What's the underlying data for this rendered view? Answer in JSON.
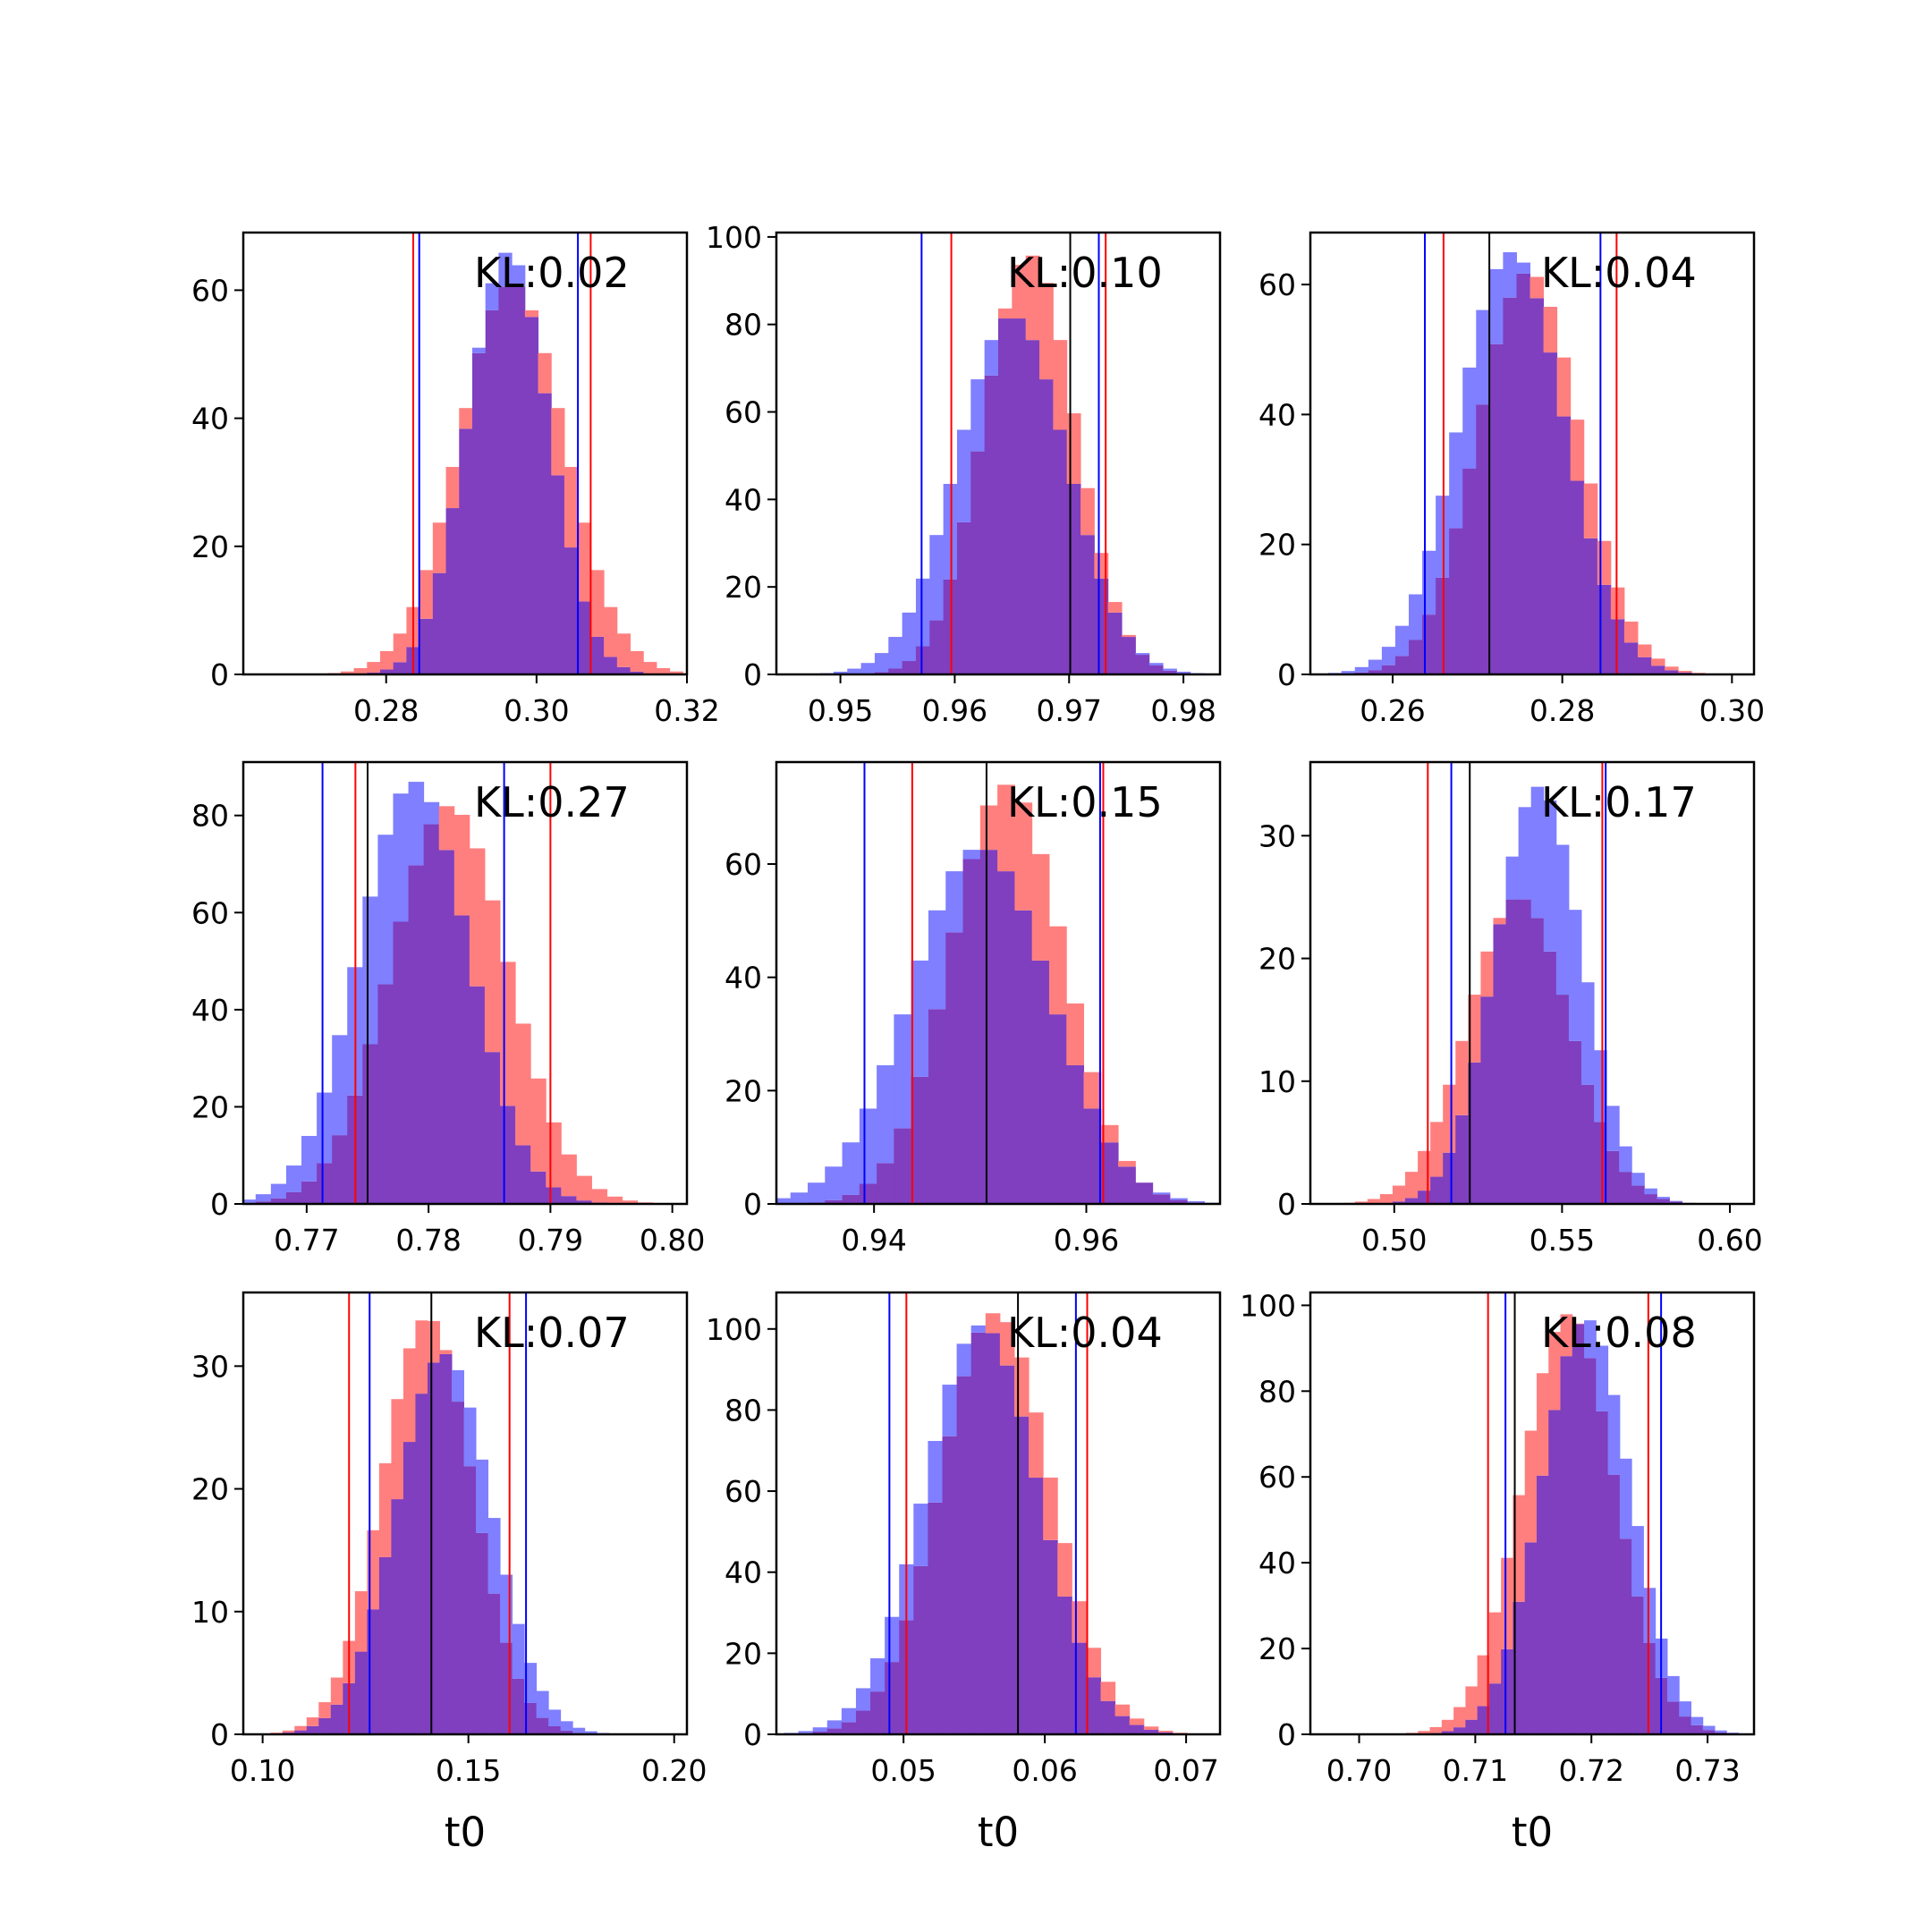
{
  "figure": {
    "colors": {
      "red_series": "#ff0000",
      "blue_series": "#0000ff",
      "red_fill": "#ff7f7f",
      "blue_fill": "#7f7fff",
      "overlap_fill": "#7f3fbf",
      "truth_line": "#000000",
      "axes": "#000000"
    }
  },
  "chart_data": [
    {
      "type": "histogram",
      "kl": "KL:0.02",
      "xlabel": "",
      "xlim": [
        0.261,
        0.32
      ],
      "ylim": [
        0,
        69
      ],
      "xticks": [
        0.28,
        0.3,
        0.32
      ],
      "xtick_labels": [
        "0.28",
        "0.30",
        "0.32"
      ],
      "yticks": [
        0,
        20,
        40,
        60
      ],
      "ytick_labels": [
        "0",
        "20",
        "40",
        "60"
      ],
      "red": {
        "mean": 0.2967,
        "std": 0.007,
        "peak": 61
      },
      "blue": {
        "mean": 0.2962,
        "std": 0.0054,
        "peak": 66
      },
      "red_interval": [
        0.2836,
        0.3072
      ],
      "blue_interval": [
        0.2844,
        0.3055
      ],
      "truth": null
    },
    {
      "type": "histogram",
      "kl": "KL:0.10",
      "xlabel": "",
      "xlim": [
        0.9444,
        0.9832
      ],
      "ylim": [
        0,
        101
      ],
      "xticks": [
        0.95,
        0.96,
        0.97,
        0.98
      ],
      "xtick_labels": [
        "0.95",
        "0.96",
        "0.97",
        "0.98"
      ],
      "yticks": [
        0,
        20,
        40,
        60,
        80,
        100
      ],
      "ytick_labels": [
        "0",
        "20",
        "40",
        "60",
        "80",
        "100"
      ],
      "red": {
        "mean": 0.9665,
        "std": 0.004,
        "peak": 96
      },
      "blue": {
        "mean": 0.965,
        "std": 0.0048,
        "peak": 82
      },
      "red_interval": [
        0.9597,
        0.9732
      ],
      "blue_interval": [
        0.9571,
        0.9726
      ],
      "truth": 0.9701
    },
    {
      "type": "histogram",
      "kl": "KL:0.04",
      "xlabel": "",
      "xlim": [
        0.2503,
        0.3026
      ],
      "ylim": [
        0,
        68
      ],
      "xticks": [
        0.26,
        0.28,
        0.3
      ],
      "xtick_labels": [
        "0.26",
        "0.28",
        "0.30"
      ],
      "yticks": [
        0,
        20,
        40,
        60
      ],
      "ytick_labels": [
        "0",
        "20",
        "40",
        "60"
      ],
      "red": {
        "mean": 0.276,
        "std": 0.006,
        "peak": 62
      },
      "blue": {
        "mean": 0.274,
        "std": 0.0062,
        "peak": 65
      },
      "red_interval": [
        0.266,
        0.2864
      ],
      "blue_interval": [
        0.2638,
        0.2845
      ],
      "truth": 0.2714
    },
    {
      "type": "histogram",
      "kl": "KL:0.27",
      "xlabel": "",
      "xlim": [
        0.7648,
        0.8012
      ],
      "ylim": [
        0,
        91
      ],
      "xticks": [
        0.77,
        0.78,
        0.79,
        0.8
      ],
      "xtick_labels": [
        "0.77",
        "0.78",
        "0.79",
        "0.80"
      ],
      "yticks": [
        0,
        20,
        40,
        60,
        80
      ],
      "ytick_labels": [
        "0",
        "20",
        "40",
        "60",
        "80"
      ],
      "red": {
        "mean": 0.7817,
        "std": 0.0048,
        "peak": 82
      },
      "blue": {
        "mean": 0.7788,
        "std": 0.0045,
        "peak": 87
      },
      "red_interval": [
        0.774,
        0.79
      ],
      "blue_interval": [
        0.7713,
        0.7862
      ],
      "truth": 0.775
    },
    {
      "type": "histogram",
      "kl": "KL:0.15",
      "xlabel": "",
      "xlim": [
        0.9308,
        0.9726
      ],
      "ylim": [
        0,
        78
      ],
      "xticks": [
        0.94,
        0.96
      ],
      "xtick_labels": [
        "0.94",
        "0.96"
      ],
      "yticks": [
        0,
        20,
        40,
        60
      ],
      "ytick_labels": [
        "0",
        "20",
        "40",
        "60"
      ],
      "red": {
        "mean": 0.9525,
        "std": 0.0053,
        "peak": 74
      },
      "blue": {
        "mean": 0.95,
        "std": 0.0065,
        "peak": 63
      },
      "red_interval": [
        0.9436,
        0.9616
      ],
      "blue_interval": [
        0.9391,
        0.9613
      ],
      "truth": 0.9506
    },
    {
      "type": "histogram",
      "kl": "KL:0.17",
      "xlabel": "",
      "xlim": [
        0.475,
        0.6072
      ],
      "ylim": [
        0,
        36
      ],
      "xticks": [
        0.5,
        0.55,
        0.6
      ],
      "xtick_labels": [
        "0.50",
        "0.55",
        "0.60"
      ],
      "yticks": [
        0,
        10,
        20,
        30
      ],
      "ytick_labels": [
        "0",
        "10",
        "20",
        "30"
      ],
      "red": {
        "mean": 0.537,
        "std": 0.015,
        "peak": 25
      },
      "blue": {
        "mean": 0.543,
        "std": 0.013,
        "peak": 34
      },
      "red_interval": [
        0.51,
        0.562
      ],
      "blue_interval": [
        0.517,
        0.563
      ],
      "truth": 0.5225
    },
    {
      "type": "histogram",
      "kl": "KL:0.07",
      "xlabel": "t0",
      "xlim": [
        0.0953,
        0.2031
      ],
      "ylim": [
        0,
        36
      ],
      "xticks": [
        0.1,
        0.15,
        0.2
      ],
      "xtick_labels": [
        "0.10",
        "0.15",
        "0.20"
      ],
      "yticks": [
        0,
        10,
        20,
        30
      ],
      "ytick_labels": [
        "0",
        "10",
        "20",
        "30"
      ],
      "red": {
        "mean": 0.14,
        "std": 0.011,
        "peak": 34
      },
      "blue": {
        "mean": 0.144,
        "std": 0.0115,
        "peak": 31
      },
      "red_interval": [
        0.121,
        0.16
      ],
      "blue_interval": [
        0.126,
        0.164
      ],
      "truth": 0.141
    },
    {
      "type": "histogram",
      "kl": "KL:0.04",
      "xlabel": "t0",
      "xlim": [
        0.041,
        0.0724
      ],
      "ylim": [
        0,
        109
      ],
      "xticks": [
        0.05,
        0.06,
        0.07
      ],
      "xtick_labels": [
        "0.05",
        "0.06",
        "0.07"
      ],
      "yticks": [
        0,
        20,
        40,
        60,
        80,
        100
      ],
      "ytick_labels": [
        "0",
        "20",
        "40",
        "60",
        "80",
        "100"
      ],
      "red": {
        "mean": 0.0565,
        "std": 0.0039,
        "peak": 104
      },
      "blue": {
        "mean": 0.0555,
        "std": 0.004,
        "peak": 101
      },
      "red_interval": [
        0.0502,
        0.063
      ],
      "blue_interval": [
        0.049,
        0.0622
      ],
      "truth": 0.0581
    },
    {
      "type": "histogram",
      "kl": "KL:0.08",
      "xlabel": "t0",
      "xlim": [
        0.6958,
        0.734
      ],
      "ylim": [
        0,
        103
      ],
      "xticks": [
        0.7,
        0.71,
        0.72,
        0.73
      ],
      "xtick_labels": [
        "0.70",
        "0.71",
        "0.72",
        "0.73"
      ],
      "yticks": [
        0,
        20,
        40,
        60,
        80,
        100
      ],
      "ytick_labels": [
        "0",
        "20",
        "40",
        "60",
        "80",
        "100"
      ],
      "red": {
        "mean": 0.718,
        "std": 0.004,
        "peak": 98
      },
      "blue": {
        "mean": 0.7195,
        "std": 0.0038,
        "peak": 97
      },
      "red_interval": [
        0.7111,
        0.7249
      ],
      "blue_interval": [
        0.7126,
        0.726
      ],
      "truth": 0.7134
    }
  ]
}
